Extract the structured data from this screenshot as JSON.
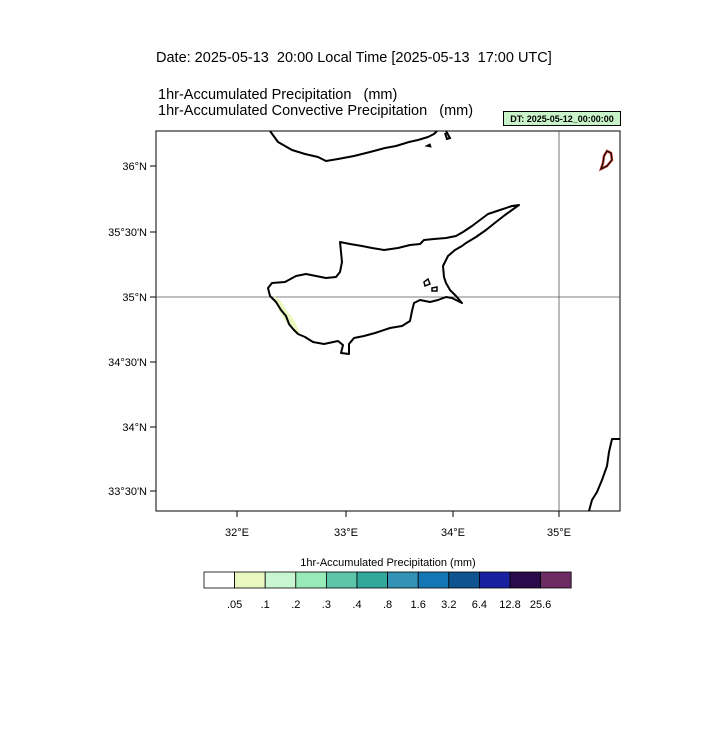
{
  "header": {
    "title": "Date: 2025-05-13  20:00 Local Time [2025-05-13  17:00 UTC]",
    "subtitle_1": "1hr-Accumulated Precipitation   (mm)",
    "subtitle_2": "1hr-Accumulated Convective Precipitation   (mm)",
    "dt_badge": "DT: 2025-05-12_00:00:00",
    "dt_badge_color": "#c8f2c8"
  },
  "map": {
    "region": "Cyprus",
    "lon_range": [
      31.17,
      35.56
    ],
    "lat_range": [
      33.27,
      36.26
    ],
    "lat_labels": [
      "36°N",
      "35°30'N",
      "35°N",
      "34°30'N",
      "34°N",
      "33°30'N"
    ],
    "lat_values": [
      36.0,
      35.5,
      35.0,
      34.5,
      34.0,
      33.5
    ],
    "lon_labels": [
      "32°E",
      "33°E",
      "34°E",
      "35°E"
    ],
    "lon_values": [
      32.0,
      33.0,
      34.0,
      35.0
    ],
    "gridlines": {
      "lat": 35.0,
      "lon": 35.0
    },
    "coastline_color": "#000000",
    "precip_patch_color": "#eaf8bf",
    "convective_outline_color": "#c0392b"
  },
  "colorbar": {
    "title": "1hr-Accumulated Precipitation  (mm)",
    "colors": [
      "#ffffff",
      "#eaf8bf",
      "#c9f6d2",
      "#98eab8",
      "#5ec4a8",
      "#31a89a",
      "#3392b6",
      "#1377b6",
      "#0f5491",
      "#1721a0",
      "#2a0a4a",
      "#6d2b63"
    ],
    "labels": [
      ".05",
      ".1",
      ".2",
      ".3",
      ".4",
      ".8",
      "1.6",
      "3.2",
      "6.4",
      "12.8",
      "25.6"
    ]
  }
}
